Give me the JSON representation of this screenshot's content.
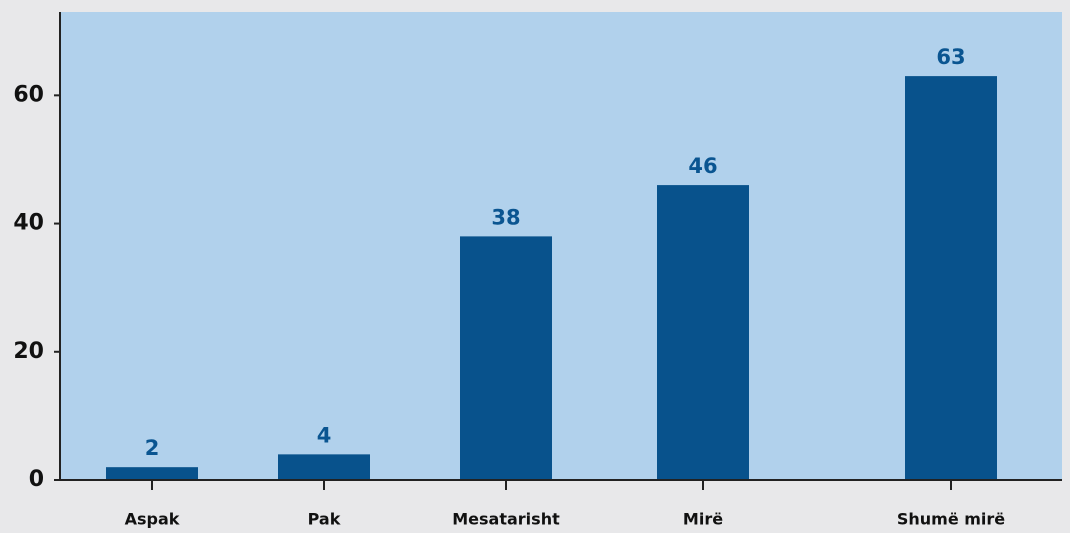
{
  "chart_data": {
    "type": "bar",
    "categories": [
      "Aspak",
      "Pak",
      "Mesatarisht",
      "Mirë",
      "Shumë mirë"
    ],
    "values": [
      2,
      4,
      38,
      46,
      63
    ],
    "color": "#08528c",
    "ylim": [
      0,
      73
    ],
    "yticks": [
      0,
      20,
      40,
      60
    ],
    "grid": false
  }
}
